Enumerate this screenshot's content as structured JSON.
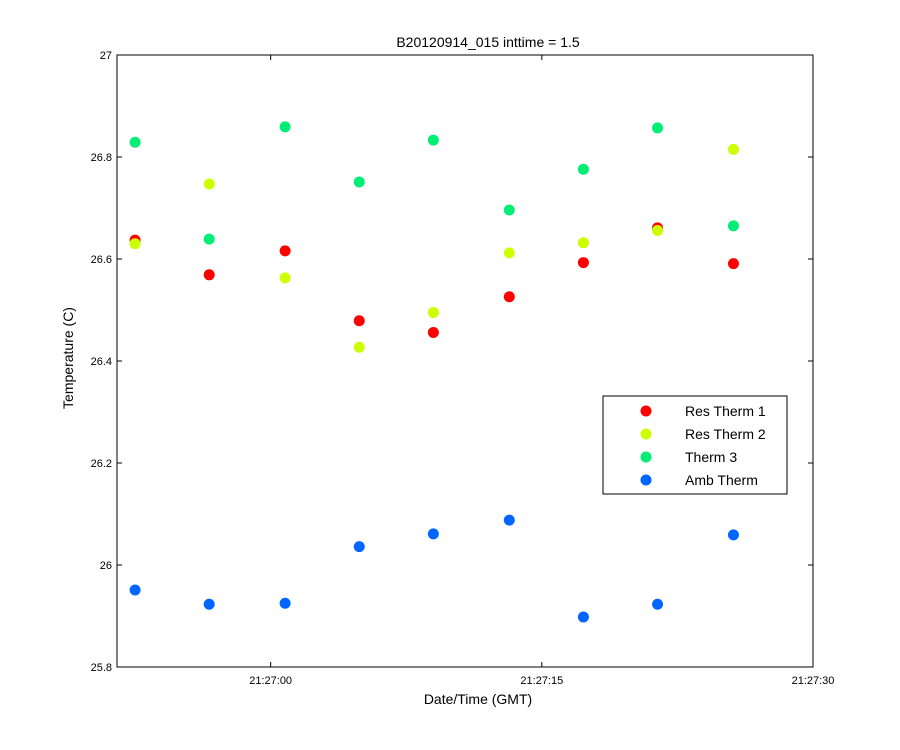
{
  "chart_data": {
    "type": "scatter",
    "title": "B20120914_015 inttime = 1.5",
    "xlabel": "Date/Time (GMT)",
    "ylabel": "Temperature (C)",
    "x_unit": "time HH:MM:SS",
    "xlim": [
      "21:26:51.5",
      "21:27:30"
    ],
    "ylim": [
      25.8,
      27.0
    ],
    "xticks": [
      "21:27:00",
      "21:27:15",
      "21:27:30"
    ],
    "yticks": [
      "25.8",
      "26",
      "26.2",
      "26.4",
      "26.6",
      "26.8",
      "27"
    ],
    "x": [
      "21:26:52.5",
      "21:26:56.6",
      "21:27:00.8",
      "21:27:04.9",
      "21:27:09.0",
      "21:27:13.2",
      "21:27:17.3",
      "21:27:21.4",
      "21:27:25.6"
    ],
    "series": [
      {
        "name": "Res Therm 1",
        "color": "#ff0000",
        "values": [
          26.637,
          26.569,
          26.616,
          26.479,
          26.456,
          26.526,
          26.593,
          26.661,
          26.591
        ]
      },
      {
        "name": "Res Therm 2",
        "color": "#ccff00",
        "values": [
          26.63,
          26.747,
          26.563,
          26.427,
          26.495,
          26.612,
          26.632,
          26.656,
          26.815
        ]
      },
      {
        "name": "Therm 3",
        "color": "#00ee76",
        "values": [
          26.829,
          26.639,
          26.859,
          26.751,
          26.833,
          26.696,
          26.776,
          26.857,
          26.665
        ]
      },
      {
        "name": "Amb Therm",
        "color": "#0066ff",
        "values": [
          25.951,
          25.923,
          25.925,
          26.036,
          26.061,
          26.088,
          25.898,
          25.923,
          26.059
        ]
      }
    ],
    "grid": false,
    "legend_position": "right"
  }
}
